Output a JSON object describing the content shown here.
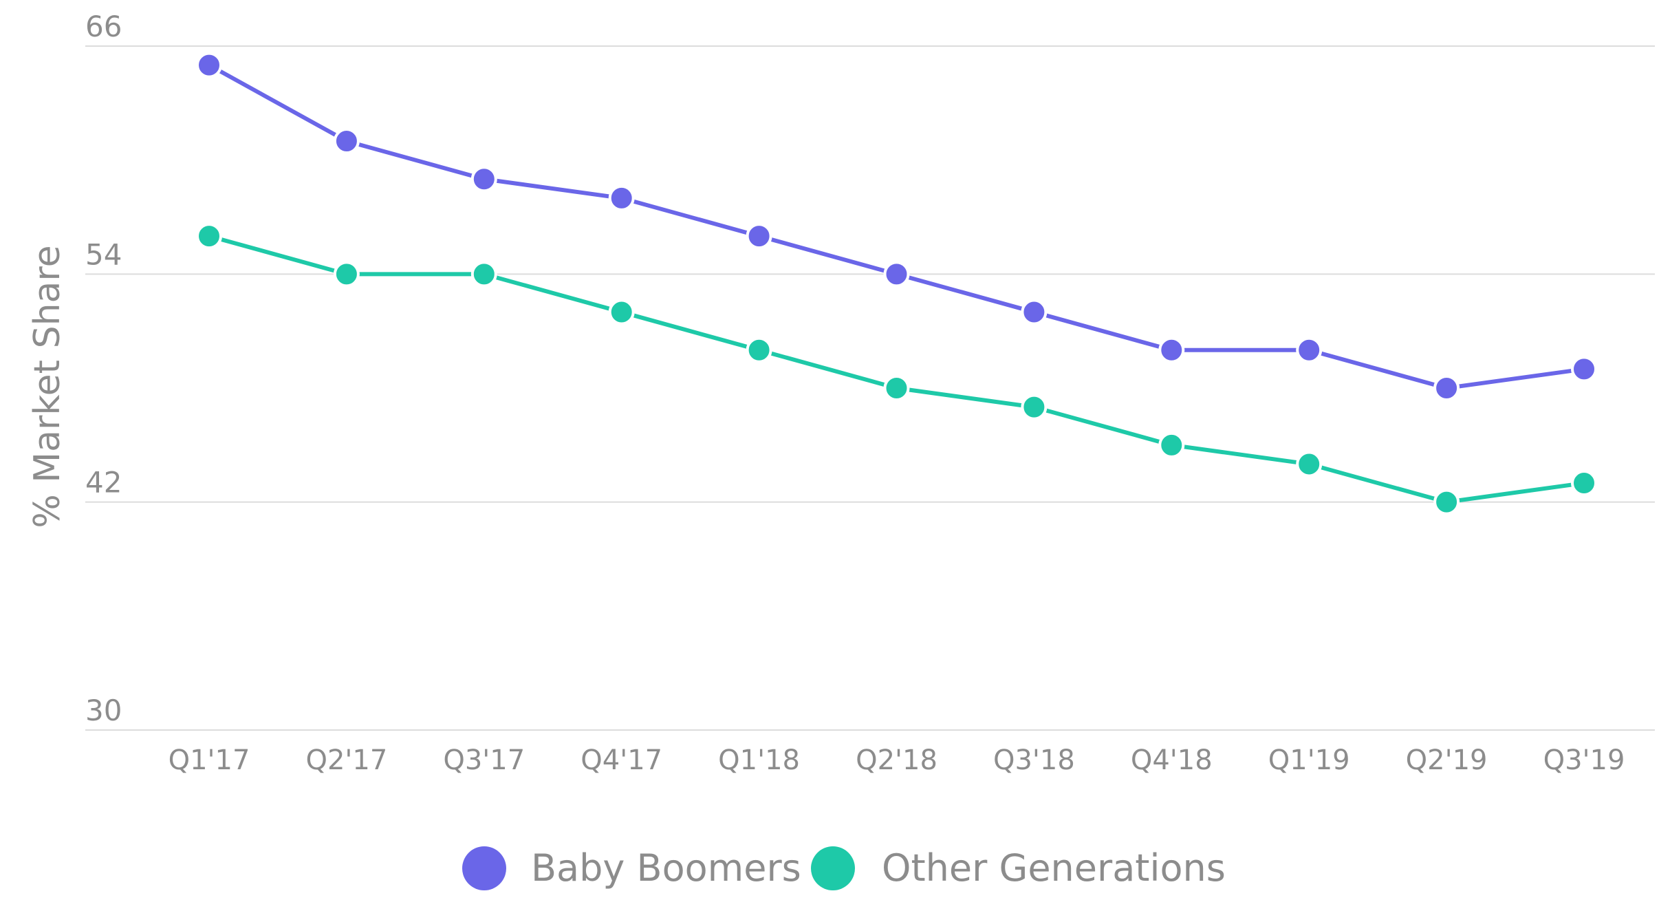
{
  "chart_data": {
    "type": "line",
    "title": "",
    "xlabel": "",
    "ylabel": "% Market Share",
    "categories": [
      "Q1'17",
      "Q2'17",
      "Q3'17",
      "Q4'17",
      "Q1'18",
      "Q2'18",
      "Q3'18",
      "Q4'18",
      "Q1'19",
      "Q2'19",
      "Q3'19"
    ],
    "ylim": [
      30,
      66
    ],
    "yticks": [
      30,
      42,
      54,
      66
    ],
    "grid": true,
    "legend_position": "bottom-center",
    "series": [
      {
        "name": "Baby Boomers",
        "color": "#6a66e8",
        "values": [
          65,
          61,
          59,
          58,
          56,
          54,
          52,
          50,
          50,
          48,
          49
        ]
      },
      {
        "name": "Other Generations",
        "color": "#1ec9a8",
        "values": [
          56,
          54,
          54,
          52,
          50,
          48,
          47,
          45,
          44,
          42,
          43
        ]
      }
    ]
  }
}
